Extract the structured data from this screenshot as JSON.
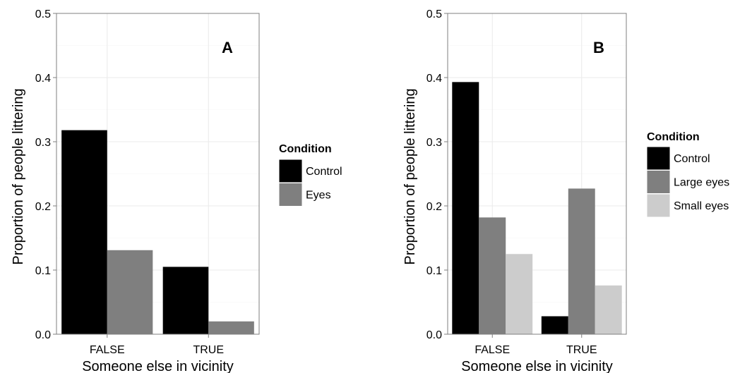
{
  "chart_data": [
    {
      "type": "bar",
      "panel_label": "A",
      "xlabel": "Someone else in vicinity",
      "ylabel": "Proportion of people littering",
      "categories": [
        "FALSE",
        "TRUE"
      ],
      "ylim": [
        0,
        0.5
      ],
      "yticks": [
        "0.0",
        "0.1",
        "0.2",
        "0.3",
        "0.4",
        "0.5"
      ],
      "grid": true,
      "legend": {
        "title": "Condition",
        "placement": "right",
        "entries": [
          "Control",
          "Eyes"
        ]
      },
      "series": [
        {
          "name": "Control",
          "color": "#000000",
          "values": [
            0.318,
            0.105
          ]
        },
        {
          "name": "Eyes",
          "color": "#7f7f7f",
          "values": [
            0.131,
            0.02
          ]
        }
      ]
    },
    {
      "type": "bar",
      "panel_label": "B",
      "xlabel": "Someone else in vicinity",
      "ylabel": "Proportion of people littering",
      "categories": [
        "FALSE",
        "TRUE"
      ],
      "ylim": [
        0,
        0.5
      ],
      "yticks": [
        "0.0",
        "0.1",
        "0.2",
        "0.3",
        "0.4",
        "0.5"
      ],
      "grid": true,
      "legend": {
        "title": "Condition",
        "placement": "right",
        "entries": [
          "Control",
          "Large eyes",
          "Small eyes"
        ]
      },
      "series": [
        {
          "name": "Control",
          "color": "#000000",
          "values": [
            0.393,
            0.028
          ]
        },
        {
          "name": "Large eyes",
          "color": "#7f7f7f",
          "values": [
            0.182,
            0.227
          ]
        },
        {
          "name": "Small eyes",
          "color": "#cccccc",
          "values": [
            0.125,
            0.076
          ]
        }
      ]
    }
  ]
}
